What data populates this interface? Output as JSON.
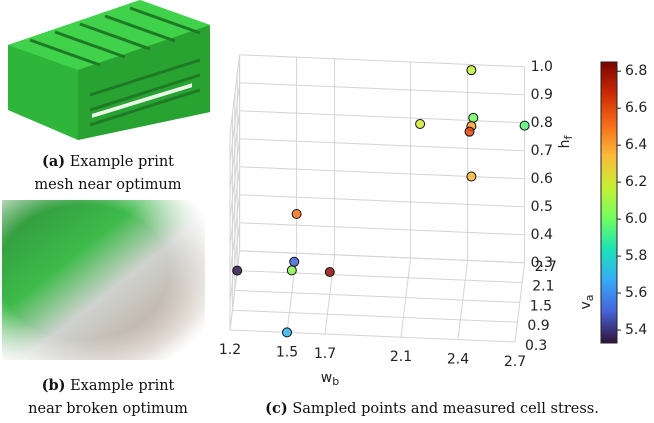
{
  "panels": {
    "a": {
      "label": "(a)",
      "lines": [
        "Example print",
        "mesh near optimum"
      ]
    },
    "b": {
      "label": "(b)",
      "lines": [
        "Example print",
        "near broken optimum"
      ]
    },
    "c": {
      "label": "(c)",
      "text": "Sampled points and measured cell stress."
    }
  },
  "chart_data": {
    "type": "scatter3d",
    "xlabel": {
      "text": "w",
      "sub": "b"
    },
    "ylabel": {
      "text": "v",
      "sub": "a"
    },
    "zlabel": {
      "text": "h",
      "sub": "f"
    },
    "x": [
      2.42,
      2.15,
      2.43,
      2.42,
      2.41,
      2.7,
      2.42,
      1.5,
      1.2,
      1.5,
      1.5,
      1.7,
      1.5
    ],
    "y": [
      2.7,
      2.7,
      2.7,
      2.7,
      2.7,
      2.7,
      2.7,
      2.7,
      2.1,
      2.1,
      1.5,
      1.5,
      0.3
    ],
    "z": [
      0.98,
      0.78,
      0.81,
      0.78,
      0.76,
      0.79,
      0.6,
      0.44,
      0.3,
      0.34,
      0.38,
      0.38,
      0.3
    ],
    "color_values": [
      6.15,
      6.2,
      6.0,
      6.4,
      6.6,
      5.95,
      6.35,
      6.5,
      5.35,
      5.5,
      6.05,
      6.8,
      5.7
    ],
    "xlim": [
      1.2,
      2.7
    ],
    "xticks": [
      1.2,
      1.5,
      1.7,
      2.1,
      2.4,
      2.7
    ],
    "ylim": [
      0.3,
      2.7
    ],
    "yticks": [
      0.3,
      0.9,
      1.5,
      2.1,
      2.7
    ],
    "zlim": [
      0.3,
      1.0
    ],
    "zticks": [
      0.3,
      0.4,
      0.5,
      0.6,
      0.7,
      0.8,
      0.9,
      {
        "value": 1.0,
        "label": "1.0"
      }
    ],
    "clim": [
      5.33,
      6.85
    ],
    "cticks": [
      5.4,
      5.6,
      5.8,
      {
        "value": 6.0,
        "label": "6.0"
      },
      6.2,
      6.4,
      6.6,
      6.8
    ],
    "colormap": [
      "#30123b",
      "#4662d7",
      "#36aaf9",
      "#1ae4b6",
      "#72fe5e",
      "#c8ef34",
      "#faba39",
      "#f66b19",
      "#ca2a04",
      "#7a0403"
    ],
    "grid": true
  }
}
